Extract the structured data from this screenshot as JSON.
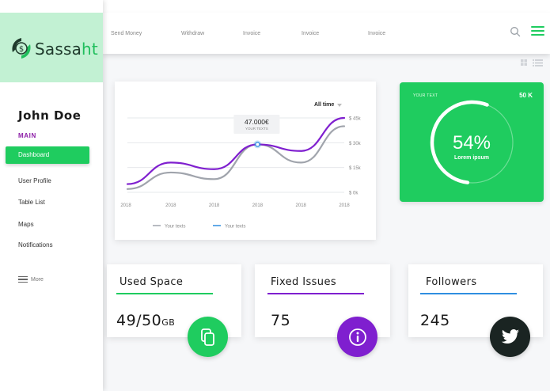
{
  "brand": {
    "name_main": "Sassa",
    "name_accent": "ht",
    "colors": {
      "accent": "#1fcc5f",
      "purple": "#7f1fcf",
      "blue": "#2f8ee0",
      "dark": "#1a2422",
      "logo_bg": "#c2f1d3"
    }
  },
  "sidebar": {
    "user_name": "John Doe",
    "section_label": "MAIN",
    "items": [
      {
        "label": "Dashboard",
        "active": true
      },
      {
        "label": "User Profile"
      },
      {
        "label": "Table List"
      },
      {
        "label": "Maps"
      },
      {
        "label": "Notifications"
      }
    ],
    "more_label": "More"
  },
  "topbar": {
    "links": [
      "Send Money",
      "Withdraw",
      "Invoice",
      "Invoice",
      "Invoice"
    ],
    "search_icon": "search-icon",
    "menu_icon": "menu-icon"
  },
  "chart_card": {
    "filter_label": "All time",
    "tooltip_value": "47.000€",
    "tooltip_caption": "YOUR TEXTS",
    "chart_data": {
      "type": "line",
      "categories": [
        "2018",
        "2018",
        "2018",
        "2018",
        "2018",
        "2018"
      ],
      "y_ticks": [
        "$ 0k",
        "$ 15k",
        "$ 30k",
        "$ 45k"
      ],
      "ylim": [
        0,
        45
      ],
      "series": [
        {
          "name": "Your texts",
          "color": "#a0a4ac",
          "values": [
            2,
            12,
            8,
            29,
            18,
            40
          ]
        },
        {
          "name": "Your texts",
          "color": "#7f1fcf",
          "values": [
            5,
            18,
            14,
            29,
            25,
            45
          ]
        }
      ],
      "legend_placement": "bottom",
      "grid": true
    }
  },
  "green_card": {
    "label": "YOUR TEXT",
    "value": "50 K",
    "percent": "54%",
    "percent_fraction": 0.54,
    "caption": "Lorem ipsum"
  },
  "stats": [
    {
      "title": "Used Space",
      "value": "49/50",
      "unit": "GB",
      "bar_color": "#1fcc5f",
      "circle_color": "#1fcc5f",
      "icon": "copy-icon"
    },
    {
      "title": "Fixed Issues",
      "value": "75",
      "unit": "",
      "bar_color": "#7f1fcf",
      "circle_color": "#7f1fcf",
      "icon": "info-icon"
    },
    {
      "title": "Followers",
      "value": "245",
      "unit": "",
      "bar_color": "#2f8ee0",
      "circle_color": "#1a2422",
      "icon": "twitter-icon"
    }
  ]
}
